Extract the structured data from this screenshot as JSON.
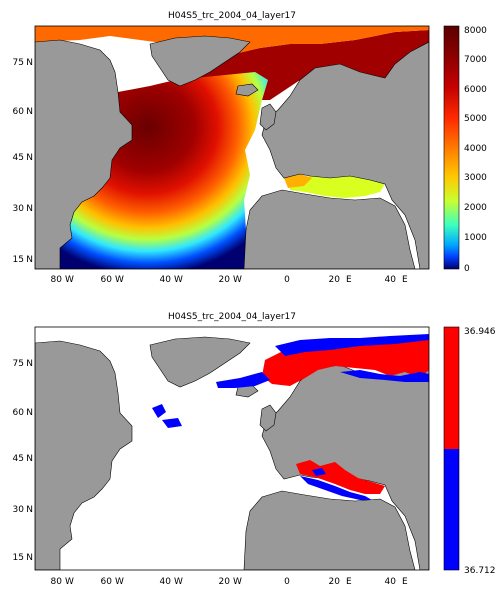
{
  "panels": [
    {
      "title": "H04S5_trc_2004_04_layer17",
      "lat_labels": [
        "75",
        "60",
        "45",
        "30",
        "15"
      ],
      "lon_labels": [
        "80",
        "60",
        "40",
        "20",
        "0",
        "20",
        "40"
      ],
      "lon_suffixes": [
        "W",
        "W",
        "W",
        "W",
        "",
        "E",
        "E"
      ],
      "lat_suffix": "N",
      "colorbar": {
        "ticks": [
          "8000",
          "7000",
          "6000",
          "5000",
          "4000",
          "3000",
          "2000",
          "1000",
          "0"
        ],
        "colors": [
          "#5a0000",
          "#8a0000",
          "#c40000",
          "#ff2a00",
          "#ff7a00",
          "#ffc800",
          "#c8ff30",
          "#3cffc0",
          "#00a8ff",
          "#0040ff",
          "#00006e"
        ]
      },
      "land_color": "#999999",
      "ocean_color": "#ffffff"
    },
    {
      "title": "H04S5_trc_2004_04_layer17",
      "lat_labels": [
        "75",
        "60",
        "45",
        "30",
        "15"
      ],
      "lon_labels": [
        "80",
        "60",
        "40",
        "20",
        "0",
        "20",
        "40"
      ],
      "lon_suffixes": [
        "W",
        "W",
        "W",
        "W",
        "",
        "E",
        "E"
      ],
      "lat_suffix": "N",
      "colorbar": {
        "ticks": [
          "36.946",
          "36.712"
        ],
        "upper_color": "#ff0000",
        "lower_color": "#0000ff"
      },
      "land_color": "#999999",
      "ocean_color": "#ffffff"
    }
  ]
}
